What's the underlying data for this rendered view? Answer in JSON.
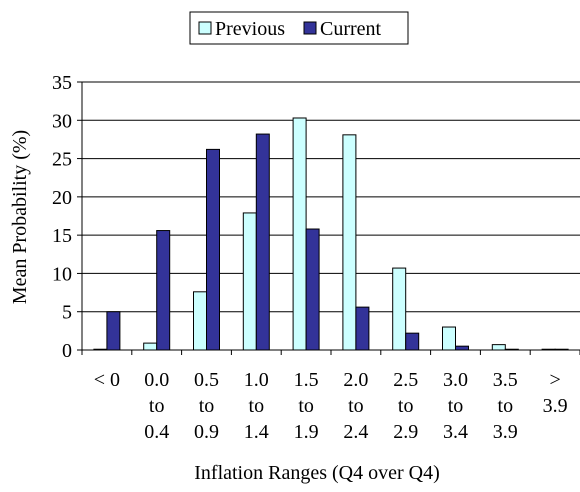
{
  "chart_data": {
    "type": "bar",
    "title": "",
    "xlabel": "Inflation Ranges (Q4 over Q4)",
    "ylabel": "Mean Probability (%)",
    "ylim": [
      0,
      35
    ],
    "yticks": [
      0,
      5,
      10,
      15,
      20,
      25,
      30,
      35
    ],
    "grid": true,
    "legend_position": "top",
    "categories": [
      [
        "< 0"
      ],
      [
        "0.0",
        "to",
        "0.4"
      ],
      [
        "0.5",
        "to",
        "0.9"
      ],
      [
        "1.0",
        "to",
        "1.4"
      ],
      [
        "1.5",
        "to",
        "1.9"
      ],
      [
        "2.0",
        "to",
        "2.4"
      ],
      [
        "2.5",
        "to",
        "2.9"
      ],
      [
        "3.0",
        "to",
        "3.4"
      ],
      [
        "3.5",
        "to",
        "3.9"
      ],
      [
        ">",
        "3.9"
      ]
    ],
    "series": [
      {
        "name": "Previous",
        "color": "#ccffff",
        "values": [
          0.1,
          0.9,
          7.6,
          17.9,
          30.3,
          28.1,
          10.7,
          3.0,
          0.7,
          0.1
        ]
      },
      {
        "name": "Current",
        "color": "#333399",
        "values": [
          5.0,
          15.6,
          26.2,
          28.2,
          15.8,
          5.6,
          2.2,
          0.5,
          0.1,
          0.1
        ]
      }
    ]
  }
}
